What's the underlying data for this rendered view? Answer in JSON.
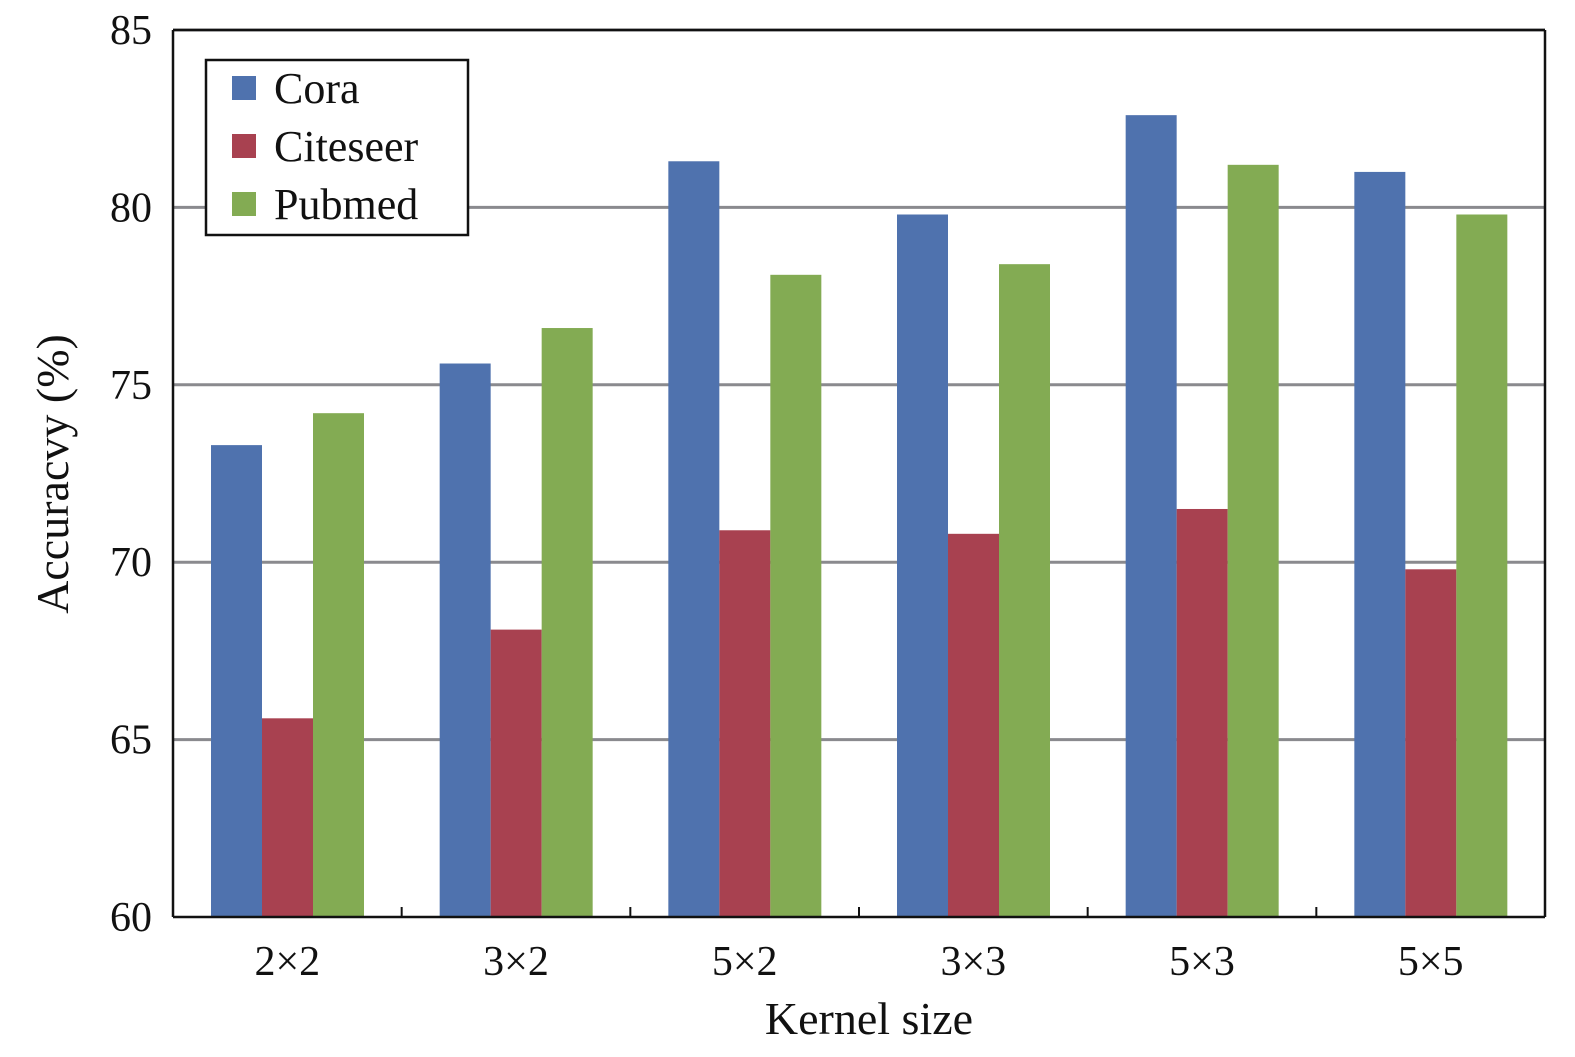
{
  "chart_data": {
    "type": "bar",
    "title": "",
    "xlabel": "Kernel size",
    "ylabel": "Accuracvy (%)",
    "categories": [
      "2×2",
      "3×2",
      "5×2",
      "3×3",
      "5×3",
      "5×5"
    ],
    "ylim": [
      60,
      85
    ],
    "yticks": [
      60,
      65,
      70,
      75,
      80,
      85
    ],
    "grid": true,
    "legend_position": "top-left",
    "series": [
      {
        "name": "Cora",
        "color": "#4F72AE",
        "values": [
          73.3,
          75.6,
          81.3,
          79.8,
          82.6,
          81.0
        ]
      },
      {
        "name": "Citeseer",
        "color": "#A84150",
        "values": [
          65.6,
          68.1,
          70.9,
          70.8,
          71.5,
          69.8
        ]
      },
      {
        "name": "Pubmed",
        "color": "#83AB53",
        "values": [
          74.2,
          76.6,
          78.1,
          78.4,
          81.2,
          79.8
        ]
      }
    ]
  }
}
